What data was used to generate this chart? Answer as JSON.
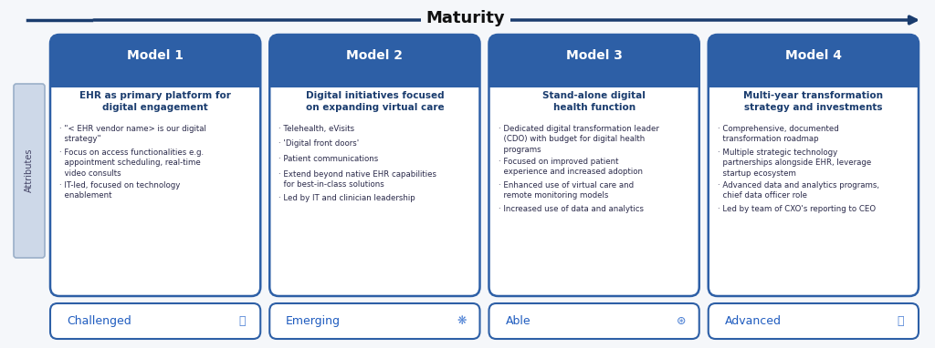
{
  "title": "Maturity",
  "background_color": "#f5f7fa",
  "header_bg": "#2d5fa6",
  "header_text_color": "#ffffff",
  "card_bg": "#ffffff",
  "card_border": "#2d5fa6",
  "subtitle_color": "#1a3c6e",
  "bullet_color": "#2a2a4a",
  "attributes_label": "Attributes",
  "arrow_color": "#1a3c6e",
  "models": [
    {
      "title": "Model 1",
      "subtitle": "EHR as primary platform for\ndigital engagement",
      "bullets": [
        "· \"< EHR vendor name> is our digital\n  strategy\"",
        "· Focus on access functionalities e.g.\n  appointment scheduling, real-time\n  video consults",
        "· IT-led, focused on technology\n  enablement"
      ],
      "footer": "Challenged"
    },
    {
      "title": "Model 2",
      "subtitle": "Digital initiatives focused\non expanding virtual care",
      "bullets": [
        "· Telehealth, eVisits",
        "· 'Digital front doors'",
        "· Patient communications",
        "· Extend beyond native EHR capabilities\n  for best-in-class solutions",
        "· Led by IT and clinician leadership"
      ],
      "footer": "Emerging"
    },
    {
      "title": "Model 3",
      "subtitle": "Stand-alone digital\nhealth function",
      "bullets": [
        "· Dedicated digital transformation leader\n  (CDO) with budget for digital health\n  programs",
        "· Focused on improved patient\n  experience and increased adoption",
        "· Enhanced use of virtual care and\n  remote monitoring models",
        "· Increased use of data and analytics"
      ],
      "footer": "Able"
    },
    {
      "title": "Model 4",
      "subtitle": "Multi-year transformation\nstrategy and investments",
      "bullets": [
        "· Comprehensive, documented\n  transformation roadmap",
        "· Multiple strategic technology\n  partnerships alongside EHR, leverage\n  startup ecosystem",
        "· Advanced data and analytics programs,\n  chief data officer role",
        "· Led by team of CXO's reporting to CEO"
      ],
      "footer": "Advanced"
    }
  ]
}
